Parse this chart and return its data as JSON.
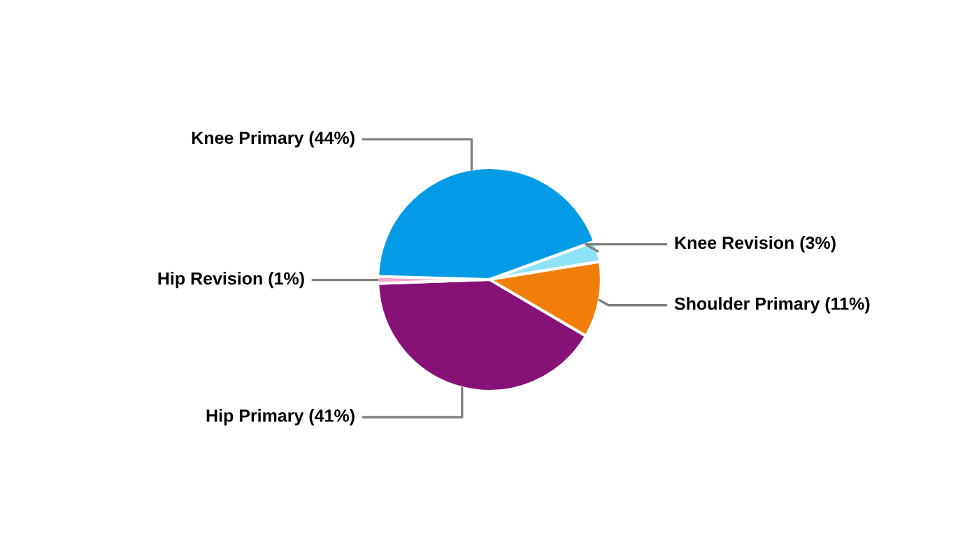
{
  "chart_data": {
    "type": "pie",
    "categories": [
      "Knee Revision (3%)",
      "Shoulder Primary (11%)",
      "Hip Primary (41%)",
      "Hip Revision (1%)",
      "Knee Primary (44%)"
    ],
    "values": [
      3,
      11,
      41,
      1,
      44
    ],
    "colors": [
      "#8fe3f7",
      "#f07f09",
      "#861177",
      "#f4a6c8",
      "#039be5"
    ]
  }
}
